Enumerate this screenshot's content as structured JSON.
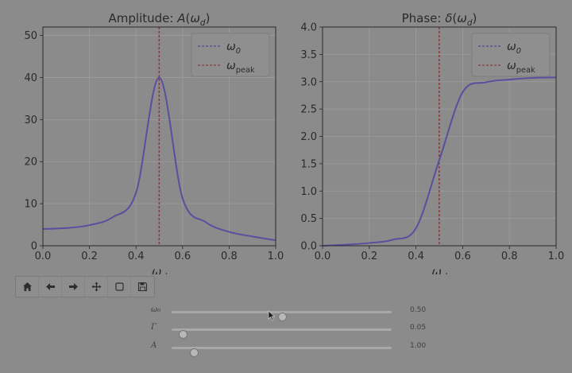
{
  "toolbar": [
    {
      "name": "home-icon",
      "label": "Home"
    },
    {
      "name": "back-arrow-icon",
      "label": "Back"
    },
    {
      "name": "forward-arrow-icon",
      "label": "Forward"
    },
    {
      "name": "pan-icon",
      "label": "Pan"
    },
    {
      "name": "zoom-rect-icon",
      "label": "Zoom"
    },
    {
      "name": "save-icon",
      "label": "Save"
    }
  ],
  "sliders": [
    {
      "id": "omega0",
      "label": "ω₀",
      "min": 0,
      "max": 1,
      "value": 0.5,
      "display": "0.50"
    },
    {
      "id": "gamma",
      "label": "Γ",
      "min": 0,
      "max": 1,
      "value": 0.05,
      "display": "0.05"
    },
    {
      "id": "A",
      "label": "A",
      "min": 0,
      "max": 10,
      "value": 1.0,
      "display": "1.00"
    }
  ],
  "colors": {
    "curve": "#5a4e9e",
    "omega0_line": "#4a4a8c",
    "peak_line": "#8c3a3a",
    "grid": "#9d9d9d"
  },
  "chart_data": [
    {
      "type": "line",
      "title": "Amplitude: A(ω_d)",
      "xlabel": "ω_d",
      "xlim": [
        0.0,
        1.0
      ],
      "ylim": [
        0,
        52
      ],
      "xticks": [
        "0.0",
        "0.2",
        "0.4",
        "0.6",
        "0.8",
        "1.0"
      ],
      "yticks": [
        "0",
        "10",
        "20",
        "30",
        "40",
        "50"
      ],
      "series": [
        {
          "values": [
            4.0,
            4.2,
            4.9,
            6.8,
            12.6,
            40.0,
            11.3,
            5.6,
            3.3,
            2.2,
            1.3
          ]
        }
      ],
      "x": [
        0.0,
        0.1,
        0.2,
        0.3,
        0.4,
        0.5,
        0.6,
        0.7,
        0.8,
        0.9,
        1.0
      ],
      "legend": [
        "ω_0",
        "ω_peak"
      ],
      "legend_position": "top-right",
      "vlines": [
        0.5,
        0.499
      ],
      "grid": true
    },
    {
      "type": "line",
      "title": "Phase: δ(ω_d)",
      "xlabel": "ω_d",
      "xlim": [
        0.0,
        1.0
      ],
      "ylim": [
        0.0,
        4.0
      ],
      "xticks": [
        "0.0",
        "0.2",
        "0.4",
        "0.6",
        "0.8",
        "1.0"
      ],
      "yticks": [
        "0.0",
        "0.5",
        "1.0",
        "1.5",
        "2.0",
        "2.5",
        "3.0",
        "3.5",
        "4.0"
      ],
      "series": [
        {
          "values": [
            0.0,
            0.02,
            0.05,
            0.11,
            0.32,
            1.57,
            2.81,
            2.99,
            3.04,
            3.07,
            3.08
          ]
        }
      ],
      "x": [
        0.0,
        0.1,
        0.2,
        0.3,
        0.4,
        0.5,
        0.6,
        0.7,
        0.8,
        0.9,
        1.0
      ],
      "legend": [
        "ω_0",
        "ω_peak"
      ],
      "legend_position": "top-right",
      "vlines": [
        0.5,
        0.499
      ],
      "grid": true
    }
  ]
}
